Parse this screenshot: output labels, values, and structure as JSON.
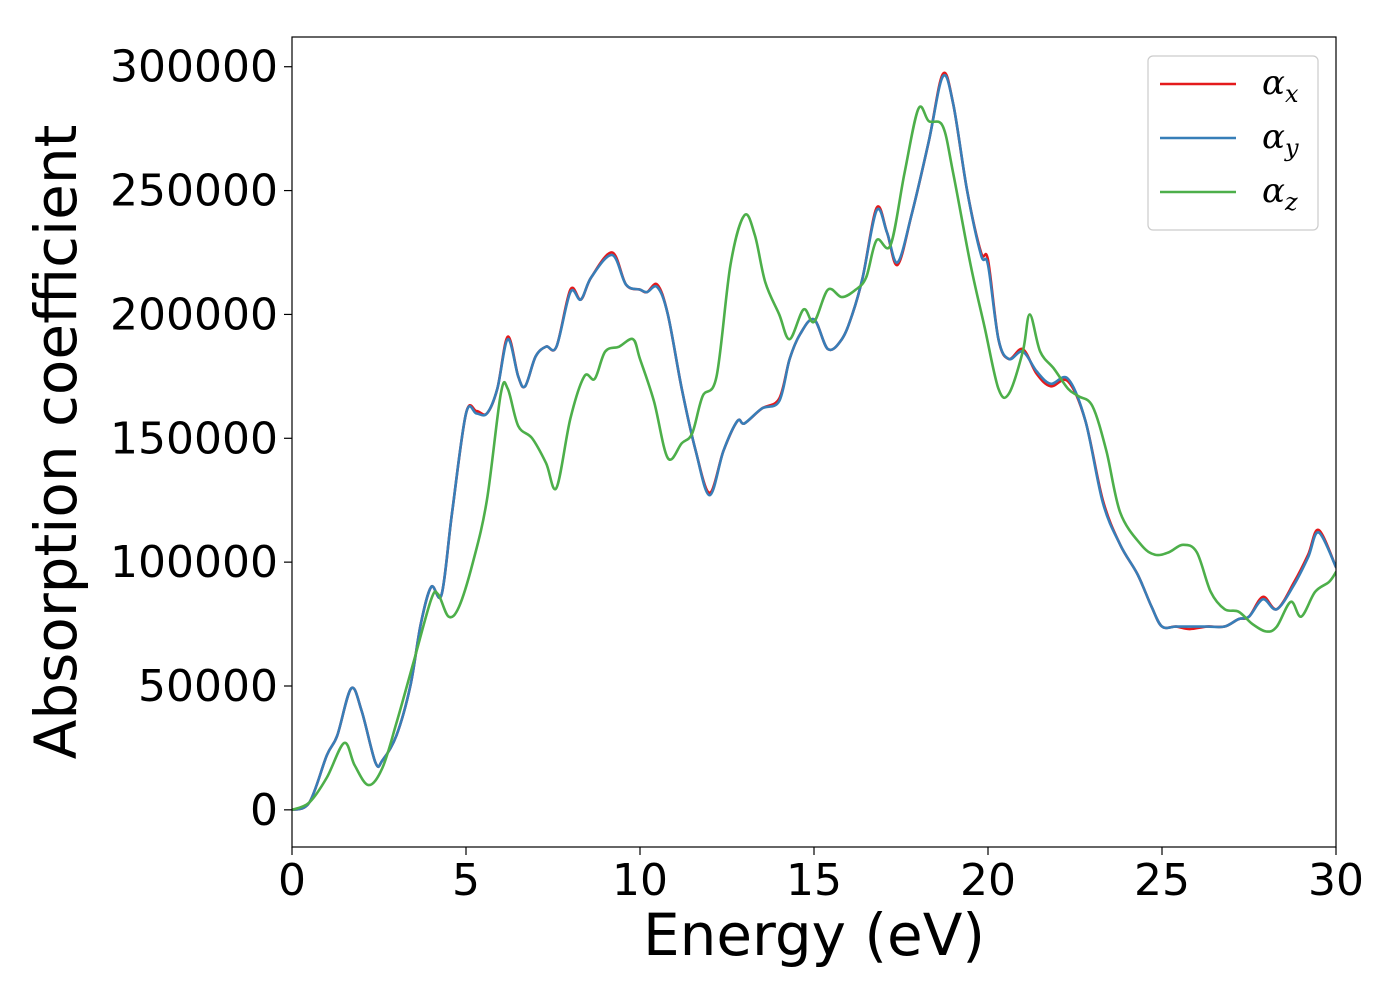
{
  "chart_data": {
    "type": "line",
    "xlabel": "Energy (eV)",
    "ylabel": "Absorption coefficient",
    "xlim": [
      0,
      30
    ],
    "ylim": [
      -15000,
      312000
    ],
    "x_ticks": [
      "0",
      "5",
      "10",
      "15",
      "20",
      "25",
      "30"
    ],
    "y_ticks": [
      "0",
      "50000",
      "100000",
      "150000",
      "200000",
      "250000",
      "300000"
    ],
    "x_tick_values": [
      0,
      5,
      10,
      15,
      20,
      25,
      30
    ],
    "y_tick_values": [
      0,
      50000,
      100000,
      150000,
      200000,
      250000,
      300000
    ],
    "grid": false,
    "legend_position": "top-right",
    "series": [
      {
        "name": "α_x",
        "legend_symbol": "α",
        "legend_sub": "x",
        "color": "#e41a1c",
        "points": [
          [
            0,
            0
          ],
          [
            0.5,
            3000
          ],
          [
            1,
            22000
          ],
          [
            1.3,
            30000
          ],
          [
            1.7,
            49000
          ],
          [
            2,
            40000
          ],
          [
            2.4,
            19000
          ],
          [
            2.6,
            20000
          ],
          [
            3,
            30000
          ],
          [
            3.4,
            50000
          ],
          [
            3.7,
            75000
          ],
          [
            4,
            90000
          ],
          [
            4.3,
            87000
          ],
          [
            4.6,
            120000
          ],
          [
            5,
            160000
          ],
          [
            5.3,
            161000
          ],
          [
            5.6,
            160000
          ],
          [
            5.9,
            170000
          ],
          [
            6.2,
            191000
          ],
          [
            6.5,
            175000
          ],
          [
            6.7,
            171000
          ],
          [
            7,
            183000
          ],
          [
            7.3,
            187000
          ],
          [
            7.6,
            187000
          ],
          [
            8,
            210000
          ],
          [
            8.3,
            206000
          ],
          [
            8.6,
            215000
          ],
          [
            9.2,
            225000
          ],
          [
            9.6,
            212000
          ],
          [
            10,
            210000
          ],
          [
            10.2,
            209000
          ],
          [
            10.5,
            212000
          ],
          [
            10.8,
            200000
          ],
          [
            11.2,
            170000
          ],
          [
            11.6,
            145000
          ],
          [
            12,
            128000
          ],
          [
            12.4,
            145000
          ],
          [
            12.8,
            157000
          ],
          [
            13,
            156000
          ],
          [
            13.5,
            162000
          ],
          [
            14,
            166000
          ],
          [
            14.3,
            182000
          ],
          [
            14.6,
            192000
          ],
          [
            15,
            198000
          ],
          [
            15.4,
            186000
          ],
          [
            15.8,
            190000
          ],
          [
            16.1,
            200000
          ],
          [
            16.4,
            215000
          ],
          [
            16.8,
            243000
          ],
          [
            17.1,
            233000
          ],
          [
            17.4,
            220000
          ],
          [
            17.8,
            240000
          ],
          [
            18.3,
            270000
          ],
          [
            18.7,
            297000
          ],
          [
            19,
            285000
          ],
          [
            19.4,
            250000
          ],
          [
            19.8,
            225000
          ],
          [
            20,
            222000
          ],
          [
            20.3,
            190000
          ],
          [
            20.6,
            182000
          ],
          [
            21,
            186000
          ],
          [
            21.4,
            176000
          ],
          [
            21.8,
            171000
          ],
          [
            22.3,
            173000
          ],
          [
            22.8,
            157000
          ],
          [
            23.3,
            125000
          ],
          [
            23.8,
            107000
          ],
          [
            24.3,
            95000
          ],
          [
            24.7,
            82000
          ],
          [
            25,
            74000
          ],
          [
            25.4,
            74000
          ],
          [
            25.8,
            73000
          ],
          [
            26.3,
            74000
          ],
          [
            26.8,
            74000
          ],
          [
            27.2,
            77000
          ],
          [
            27.5,
            78000
          ],
          [
            27.9,
            86000
          ],
          [
            28.3,
            81000
          ],
          [
            28.8,
            92000
          ],
          [
            29.2,
            103000
          ],
          [
            29.5,
            113000
          ],
          [
            30,
            98000
          ]
        ]
      },
      {
        "name": "α_y",
        "legend_symbol": "α",
        "legend_sub": "y",
        "color": "#377eb8",
        "points": [
          [
            0,
            0
          ],
          [
            0.5,
            3000
          ],
          [
            1,
            22000
          ],
          [
            1.3,
            30000
          ],
          [
            1.7,
            49000
          ],
          [
            2,
            40000
          ],
          [
            2.4,
            19000
          ],
          [
            2.6,
            20000
          ],
          [
            3,
            30000
          ],
          [
            3.4,
            50000
          ],
          [
            3.7,
            75000
          ],
          [
            4,
            90000
          ],
          [
            4.3,
            87000
          ],
          [
            4.6,
            120000
          ],
          [
            5,
            160000
          ],
          [
            5.3,
            160000
          ],
          [
            5.6,
            160000
          ],
          [
            5.9,
            170000
          ],
          [
            6.2,
            190000
          ],
          [
            6.5,
            175000
          ],
          [
            6.7,
            171000
          ],
          [
            7,
            183000
          ],
          [
            7.3,
            187000
          ],
          [
            7.6,
            187000
          ],
          [
            8,
            209000
          ],
          [
            8.3,
            206000
          ],
          [
            8.6,
            215000
          ],
          [
            9.2,
            224000
          ],
          [
            9.6,
            212000
          ],
          [
            10,
            210000
          ],
          [
            10.2,
            209000
          ],
          [
            10.5,
            211000
          ],
          [
            10.8,
            200000
          ],
          [
            11.2,
            170000
          ],
          [
            11.6,
            145000
          ],
          [
            12,
            127000
          ],
          [
            12.4,
            145000
          ],
          [
            12.8,
            157000
          ],
          [
            13,
            156000
          ],
          [
            13.5,
            162000
          ],
          [
            14,
            165000
          ],
          [
            14.3,
            182000
          ],
          [
            14.6,
            192000
          ],
          [
            15,
            198000
          ],
          [
            15.4,
            186000
          ],
          [
            15.8,
            190000
          ],
          [
            16.1,
            200000
          ],
          [
            16.4,
            215000
          ],
          [
            16.8,
            242000
          ],
          [
            17.1,
            233000
          ],
          [
            17.4,
            221000
          ],
          [
            17.8,
            240000
          ],
          [
            18.3,
            270000
          ],
          [
            18.7,
            296000
          ],
          [
            19,
            285000
          ],
          [
            19.4,
            250000
          ],
          [
            19.8,
            224000
          ],
          [
            20,
            220000
          ],
          [
            20.3,
            190000
          ],
          [
            20.6,
            182000
          ],
          [
            21,
            185000
          ],
          [
            21.4,
            177000
          ],
          [
            21.8,
            172000
          ],
          [
            22.3,
            174000
          ],
          [
            22.8,
            157000
          ],
          [
            23.3,
            124000
          ],
          [
            23.8,
            107000
          ],
          [
            24.3,
            95000
          ],
          [
            24.7,
            82000
          ],
          [
            25,
            74000
          ],
          [
            25.4,
            74000
          ],
          [
            25.8,
            74000
          ],
          [
            26.3,
            74000
          ],
          [
            26.8,
            74000
          ],
          [
            27.2,
            77000
          ],
          [
            27.5,
            78000
          ],
          [
            27.9,
            85000
          ],
          [
            28.3,
            81000
          ],
          [
            28.8,
            91000
          ],
          [
            29.2,
            102000
          ],
          [
            29.5,
            112000
          ],
          [
            30,
            98000
          ]
        ]
      },
      {
        "name": "α_z",
        "legend_symbol": "α",
        "legend_sub": "z",
        "color": "#4daf4a",
        "points": [
          [
            0,
            0
          ],
          [
            0.5,
            3000
          ],
          [
            1,
            13000
          ],
          [
            1.5,
            27000
          ],
          [
            1.8,
            18000
          ],
          [
            2.2,
            10000
          ],
          [
            2.6,
            17000
          ],
          [
            3,
            35000
          ],
          [
            3.5,
            60000
          ],
          [
            4,
            85000
          ],
          [
            4.2,
            87000
          ],
          [
            4.5,
            78000
          ],
          [
            4.8,
            82000
          ],
          [
            5.2,
            100000
          ],
          [
            5.6,
            125000
          ],
          [
            6,
            168000
          ],
          [
            6.2,
            170000
          ],
          [
            6.5,
            155000
          ],
          [
            6.9,
            150000
          ],
          [
            7.3,
            140000
          ],
          [
            7.6,
            130000
          ],
          [
            8,
            158000
          ],
          [
            8.4,
            175000
          ],
          [
            8.7,
            174000
          ],
          [
            9,
            185000
          ],
          [
            9.4,
            187000
          ],
          [
            9.8,
            190000
          ],
          [
            10,
            182000
          ],
          [
            10.4,
            165000
          ],
          [
            10.8,
            142000
          ],
          [
            11.2,
            148000
          ],
          [
            11.5,
            152000
          ],
          [
            11.8,
            167000
          ],
          [
            12.2,
            175000
          ],
          [
            12.6,
            220000
          ],
          [
            13,
            240000
          ],
          [
            13.3,
            232000
          ],
          [
            13.6,
            213000
          ],
          [
            14,
            200000
          ],
          [
            14.3,
            190000
          ],
          [
            14.7,
            202000
          ],
          [
            15,
            197000
          ],
          [
            15.4,
            210000
          ],
          [
            15.8,
            207000
          ],
          [
            16.2,
            210000
          ],
          [
            16.5,
            215000
          ],
          [
            16.8,
            230000
          ],
          [
            17.2,
            228000
          ],
          [
            17.6,
            257000
          ],
          [
            18,
            283000
          ],
          [
            18.3,
            278000
          ],
          [
            18.7,
            276000
          ],
          [
            19,
            257000
          ],
          [
            19.5,
            220000
          ],
          [
            19.9,
            195000
          ],
          [
            20.3,
            170000
          ],
          [
            20.6,
            168000
          ],
          [
            21,
            185000
          ],
          [
            21.2,
            200000
          ],
          [
            21.5,
            185000
          ],
          [
            21.9,
            178000
          ],
          [
            22.3,
            170000
          ],
          [
            22.6,
            167000
          ],
          [
            23,
            163000
          ],
          [
            23.4,
            145000
          ],
          [
            23.8,
            120000
          ],
          [
            24.4,
            107000
          ],
          [
            24.8,
            103000
          ],
          [
            25.2,
            104000
          ],
          [
            25.6,
            107000
          ],
          [
            26,
            104000
          ],
          [
            26.4,
            88000
          ],
          [
            26.8,
            81000
          ],
          [
            27.2,
            80000
          ],
          [
            27.6,
            75000
          ],
          [
            28,
            72000
          ],
          [
            28.3,
            74000
          ],
          [
            28.7,
            84000
          ],
          [
            29,
            78000
          ],
          [
            29.4,
            88000
          ],
          [
            29.8,
            92000
          ],
          [
            30,
            96000
          ]
        ]
      }
    ]
  }
}
